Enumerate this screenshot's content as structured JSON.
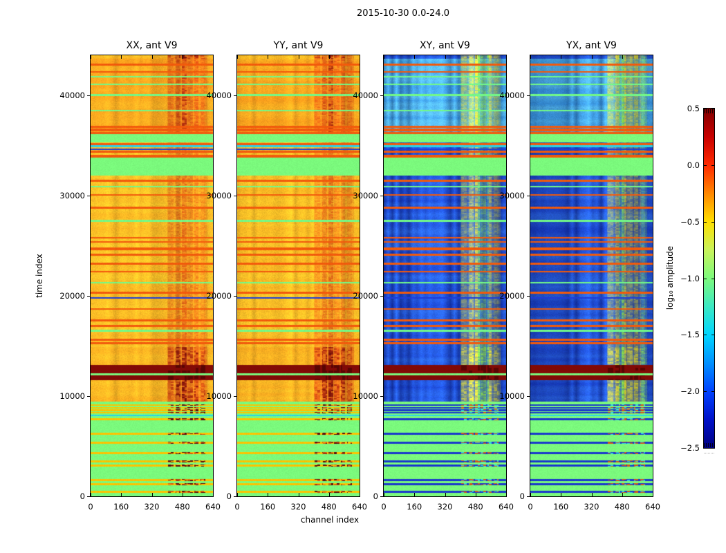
{
  "figure": {
    "suptitle": "2015-10-30 0.0-24.0",
    "xlabel": "channel index",
    "ylabel": "time index"
  },
  "chart_data": {
    "type": "heatmap",
    "suptitle": "2015-10-30 0.0-24.0",
    "xlabel": "channel index",
    "ylabel": "time index",
    "x_range": [
      0,
      640
    ],
    "y_range": [
      0,
      44000
    ],
    "x_ticks": [
      0,
      160,
      320,
      480,
      640
    ],
    "y_ticks": [
      0,
      10000,
      20000,
      30000,
      40000
    ],
    "panels": [
      {
        "title": "XX, ant V9",
        "palette": "warm",
        "seed": 11
      },
      {
        "title": "YY, ant V9",
        "palette": "warm",
        "seed": 87
      },
      {
        "title": "XY, ant V9",
        "palette": "cool",
        "seed": 53
      },
      {
        "title": "YX, ant V9",
        "palette": "cool",
        "seed": 29
      }
    ],
    "colorbar": {
      "label": "log₁₀ amplitude",
      "colormap": "jet",
      "range": [
        -2.5,
        0.5
      ],
      "tick_labels": [
        "0.5",
        "0.0",
        "−0.5",
        "−1.0",
        "−1.5",
        "−2.0",
        "−2.5"
      ],
      "stops": [
        "#7f0000",
        "#c80000",
        "#ff2a00",
        "#ff8700",
        "#ffdf00",
        "#c9f35b",
        "#7dfa7d",
        "#3ce9c3",
        "#00d5ff",
        "#0090ff",
        "#0042ff",
        "#0011c8",
        "#000082"
      ]
    },
    "structure": {
      "bands": [
        {
          "t0": 0,
          "t1": 9400,
          "kind": "flat"
        },
        {
          "t0": 9400,
          "t1": 11600,
          "kind": "tex",
          "v": "hi"
        },
        {
          "t0": 11600,
          "t1": 12080,
          "kind": "dark"
        },
        {
          "t0": 12080,
          "t1": 12260,
          "kind": "flat"
        },
        {
          "t0": 12260,
          "t1": 13080,
          "kind": "dark"
        },
        {
          "t0": 13080,
          "t1": 14900,
          "kind": "tex",
          "v": "hi"
        },
        {
          "t0": 14900,
          "t1": 32050,
          "kind": "tex",
          "v": "norm"
        },
        {
          "t0": 32050,
          "t1": 33900,
          "kind": "flat"
        },
        {
          "t0": 33900,
          "t1": 35350,
          "kind": "tex",
          "v": "norm"
        },
        {
          "t0": 35350,
          "t1": 36150,
          "kind": "flat"
        },
        {
          "t0": 36150,
          "t1": 43720,
          "kind": "tex",
          "v": "top"
        },
        {
          "t0": 43720,
          "t1": 44001,
          "kind": "tex",
          "v": "hi"
        }
      ],
      "stripes": [
        [
          420,
          "line"
        ],
        [
          1180,
          "line"
        ],
        [
          1600,
          "line"
        ],
        [
          3040,
          "line"
        ],
        [
          3460,
          "line"
        ],
        [
          4290,
          "line"
        ],
        [
          5310,
          "line"
        ],
        [
          6210,
          "line"
        ],
        [
          7660,
          "line"
        ],
        [
          8060,
          "cyan"
        ],
        [
          8320,
          "line"
        ],
        [
          8570,
          "line"
        ],
        [
          8820,
          "line"
        ],
        [
          9080,
          "line"
        ],
        [
          15250,
          "hot"
        ],
        [
          15600,
          "hot"
        ],
        [
          16500,
          "green"
        ],
        [
          17000,
          "hot"
        ],
        [
          17550,
          "hot"
        ],
        [
          18700,
          "hot"
        ],
        [
          19800,
          "blue"
        ],
        [
          20300,
          "hot"
        ],
        [
          21300,
          "green"
        ],
        [
          22400,
          "hot"
        ],
        [
          23200,
          "hot"
        ],
        [
          24100,
          "hot"
        ],
        [
          24700,
          "hot",
          140
        ],
        [
          25400,
          "hot"
        ],
        [
          25800,
          "hot"
        ],
        [
          27500,
          "green"
        ],
        [
          28800,
          "hot"
        ],
        [
          30100,
          "hot"
        ],
        [
          30900,
          "green"
        ],
        [
          31500,
          "hot"
        ],
        [
          33950,
          "hot",
          170
        ],
        [
          34400,
          "hot"
        ],
        [
          34650,
          "blue"
        ],
        [
          34950,
          "cyan"
        ],
        [
          35150,
          "hot"
        ],
        [
          36250,
          "hot"
        ],
        [
          36550,
          "hot",
          130
        ],
        [
          36900,
          "hot"
        ],
        [
          38500,
          "green"
        ],
        [
          40050,
          "green"
        ],
        [
          41150,
          "green"
        ],
        [
          41900,
          "green"
        ],
        [
          42400,
          "hot",
          60
        ],
        [
          43100,
          "hot"
        ]
      ],
      "columns": {
        "broad": [
          400,
          612,
          0.3
        ],
        "groups": [
          [
            404,
            434,
            0.5
          ],
          [
            446,
            470,
            0.65
          ],
          [
            477,
            502,
            0.78
          ],
          [
            508,
            534,
            0.55
          ],
          [
            541,
            565,
            0.62
          ],
          [
            574,
            602,
            0.5
          ]
        ]
      },
      "palettes": {
        "warm": {
          "base1": "#ffd52d",
          "base2": "#ff961a",
          "colMid": "#cd3710",
          "colDark": "#78120a",
          "line": "#ffc300",
          "dashA": "#5f0c06",
          "dashB": "#e1590c"
        },
        "cool": {
          "base1": "#1232be",
          "base2": "#2a64dc",
          "top1": "#2d86dc",
          "top2": "#55b4e6",
          "colA": "#e6e13c",
          "colB": "#8cdc50",
          "line": "#1937cd",
          "dashA": "#d2551e",
          "dashB": "#32d2dc"
        },
        "flat": "#7bfa7d",
        "dark": "#820a06",
        "stripe_hot": "#f25a0c",
        "stripe_green": "#73fa87",
        "stripe_cyan": "#2dd2e6",
        "stripe_blue": "#1e3cd7"
      }
    }
  }
}
